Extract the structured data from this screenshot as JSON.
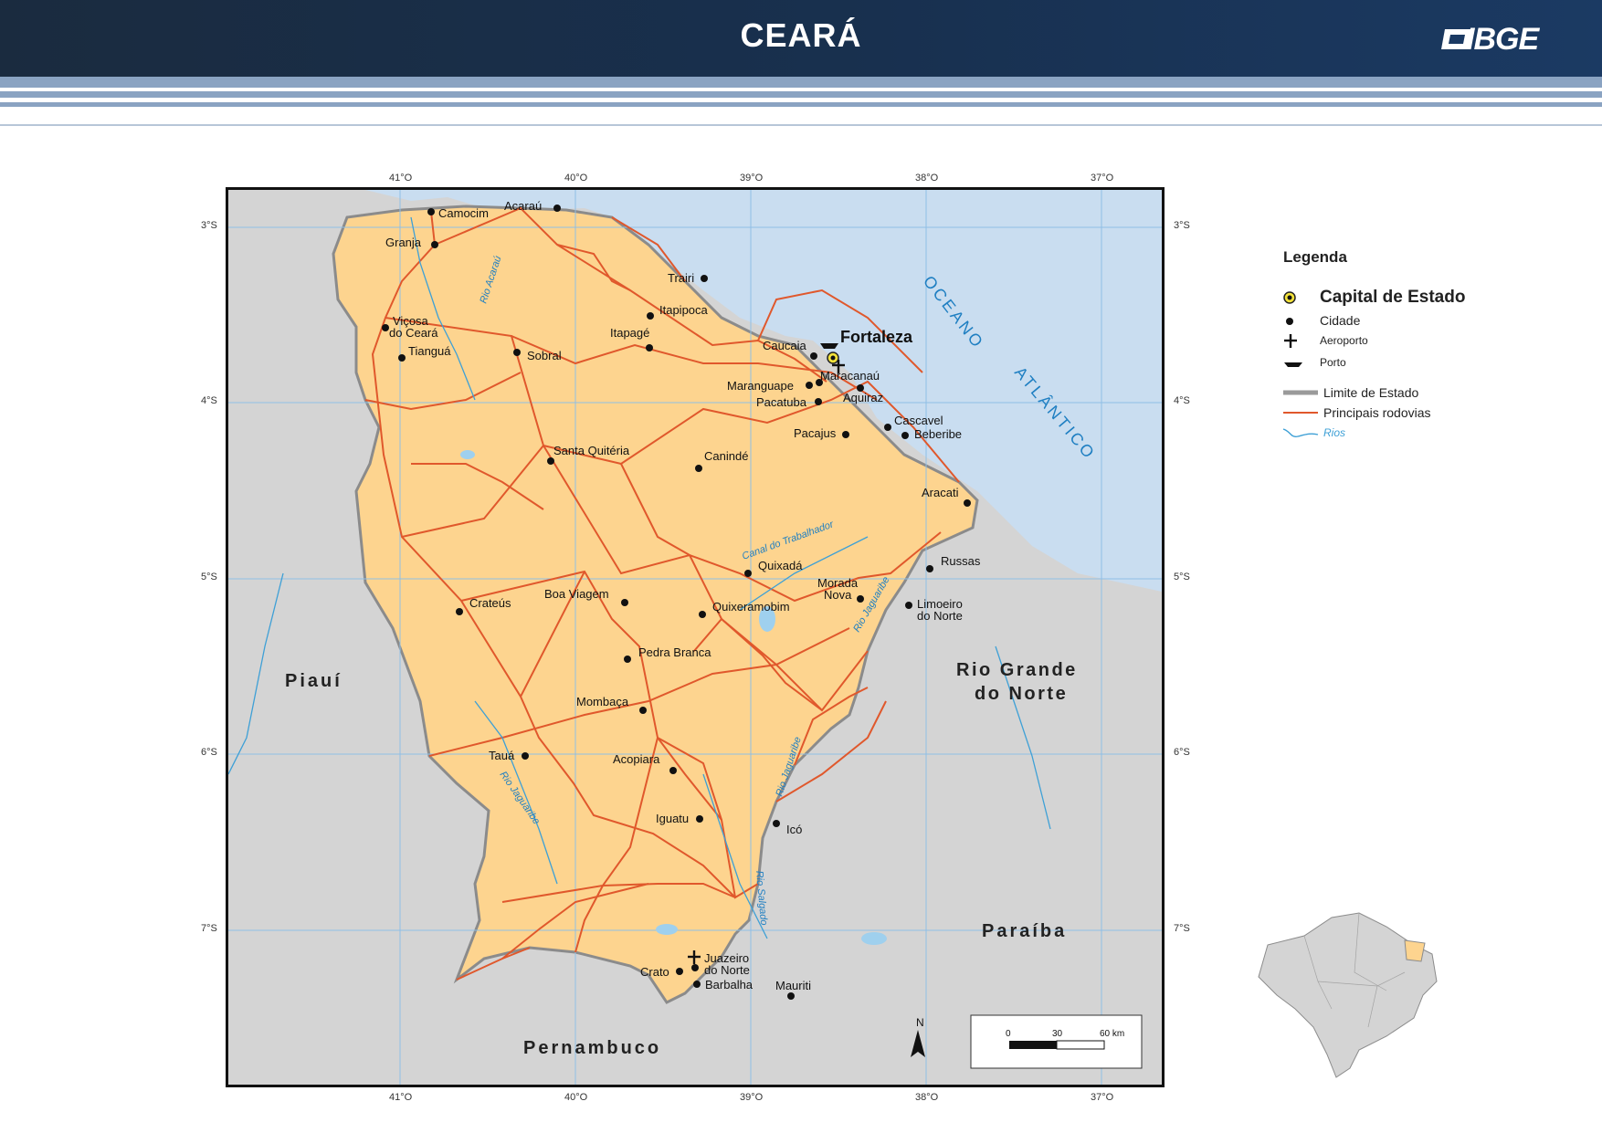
{
  "header": {
    "title": "CEARÁ",
    "logo_text": "IBGE"
  },
  "map": {
    "lon_labels": [
      "41°O",
      "40°O",
      "39°O",
      "38°O",
      "37°O"
    ],
    "lat_labels": [
      "3°S",
      "4°S",
      "5°S",
      "6°S",
      "7°S"
    ],
    "capital": "Fortaleza",
    "cities": [
      {
        "name": "Camocim",
        "lines": [
          "Camocim"
        ]
      },
      {
        "name": "Acaraú",
        "lines": [
          "Acaraú"
        ]
      },
      {
        "name": "Granja",
        "lines": [
          "Granja"
        ]
      },
      {
        "name": "Trairi",
        "lines": [
          "Trairi"
        ]
      },
      {
        "name": "Itapipoca",
        "lines": [
          "Itapipoca"
        ]
      },
      {
        "name": "Viçosa do Ceará",
        "lines": [
          "Viçosa",
          "do Ceará"
        ]
      },
      {
        "name": "Tianguá",
        "lines": [
          "Tianguá"
        ]
      },
      {
        "name": "Sobral",
        "lines": [
          "Sobral"
        ]
      },
      {
        "name": "Itapagé",
        "lines": [
          "Itapagé"
        ]
      },
      {
        "name": "Caucaia",
        "lines": [
          "Caucaia"
        ]
      },
      {
        "name": "Maracanaú",
        "lines": [
          "Maracanaú"
        ]
      },
      {
        "name": "Maranguape",
        "lines": [
          "Maranguape"
        ]
      },
      {
        "name": "Aquiraz",
        "lines": [
          "Aquiraz"
        ]
      },
      {
        "name": "Pacatuba",
        "lines": [
          "Pacatuba"
        ]
      },
      {
        "name": "Cascavel",
        "lines": [
          "Cascavel"
        ]
      },
      {
        "name": "Beberibe",
        "lines": [
          "Beberibe"
        ]
      },
      {
        "name": "Pacajus",
        "lines": [
          "Pacajus"
        ]
      },
      {
        "name": "Santa Quitéria",
        "lines": [
          "Santa Quitéria"
        ]
      },
      {
        "name": "Canindé",
        "lines": [
          "Canindé"
        ]
      },
      {
        "name": "Aracati",
        "lines": [
          "Aracati"
        ]
      },
      {
        "name": "Russas",
        "lines": [
          "Russas"
        ]
      },
      {
        "name": "Quixadá",
        "lines": [
          "Quixadá"
        ]
      },
      {
        "name": "Morada Nova",
        "lines": [
          "Morada",
          "Nova"
        ]
      },
      {
        "name": "Boa Viagem",
        "lines": [
          "Boa Viagem"
        ]
      },
      {
        "name": "Crateús",
        "lines": [
          "Crateús"
        ]
      },
      {
        "name": "Quixeramobim",
        "lines": [
          "Quixeramobim"
        ]
      },
      {
        "name": "Limoeiro do Norte",
        "lines": [
          "Limoeiro",
          "do Norte"
        ]
      },
      {
        "name": "Pedra Branca",
        "lines": [
          "Pedra Branca"
        ]
      },
      {
        "name": "Mombaça",
        "lines": [
          "Mombaça"
        ]
      },
      {
        "name": "Tauá",
        "lines": [
          "Tauá"
        ]
      },
      {
        "name": "Acopiara",
        "lines": [
          "Acopiara"
        ]
      },
      {
        "name": "Iguatu",
        "lines": [
          "Iguatu"
        ]
      },
      {
        "name": "Icó",
        "lines": [
          "Icó"
        ]
      },
      {
        "name": "Juazeiro do Norte",
        "lines": [
          "Juazeiro",
          "do Norte"
        ]
      },
      {
        "name": "Crato",
        "lines": [
          "Crato"
        ]
      },
      {
        "name": "Barbalha",
        "lines": [
          "Barbalha"
        ]
      },
      {
        "name": "Mauriti",
        "lines": [
          "Mauriti"
        ]
      }
    ],
    "states": [
      "Piauí",
      "Rio Grande do Norte",
      "Paraíba",
      "Pernambuco"
    ],
    "states_lines": {
      "Piauí": [
        "Piauí"
      ],
      "Rio Grande do Norte": [
        "Rio Grande",
        "do Norte"
      ],
      "Paraíba": [
        "Paraíba"
      ],
      "Pernambuco": [
        "Pernambuco"
      ]
    },
    "ocean": [
      "OCEANO",
      "ATLÂNTICO"
    ],
    "rivers": [
      "Rio Acaraú",
      "Canal do Trabalhador",
      "Rio Jaguaribe",
      "Rio Jaguaribe",
      "Rio Jaguaribe",
      "Rio Salgado"
    ],
    "north_arrow": "N",
    "scale": {
      "ticks": [
        "0",
        "30",
        "60 km"
      ]
    }
  },
  "legend": {
    "title": "Legenda",
    "items": [
      {
        "symbol": "capital",
        "label": "Capital de Estado"
      },
      {
        "symbol": "city",
        "label": "Cidade"
      },
      {
        "symbol": "airport",
        "label": "Aeroporto"
      },
      {
        "symbol": "port",
        "label": "Porto"
      },
      {
        "symbol": "state-boundary",
        "label": "Limite de Estado"
      },
      {
        "symbol": "road",
        "label": "Principais rodovias"
      },
      {
        "symbol": "river",
        "label": "Rios"
      }
    ]
  },
  "colors": {
    "header_bg": "#18304f",
    "ceara_fill": "#fdd48f",
    "neighbor_fill": "#d4d4d4",
    "ocean_fill": "#c9ddf0",
    "road": "#e0582c",
    "river": "#3ea0d6",
    "boundary": "#9a9a9a",
    "grid": "#8fbfe6"
  }
}
